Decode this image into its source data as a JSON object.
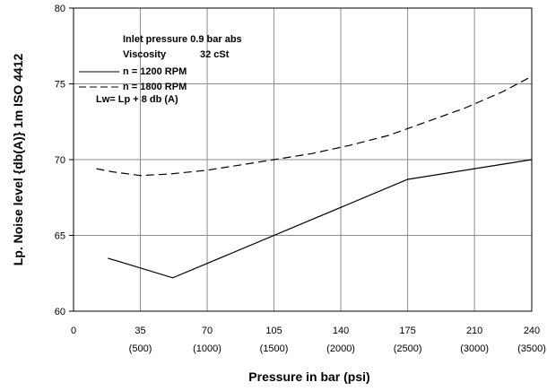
{
  "chart_data": {
    "type": "line",
    "xlabel": "Pressure in bar (psi)",
    "ylabel": "Lp. Noise level {db(A)} 1m ISO 4412",
    "xlim": [
      0,
      240
    ],
    "ylim": [
      60,
      80
    ],
    "x_ticks": [
      {
        "value": 0,
        "bar": "0",
        "psi": ""
      },
      {
        "value": 35,
        "bar": "35",
        "psi": "(500)"
      },
      {
        "value": 70,
        "bar": "70",
        "psi": "(1000)"
      },
      {
        "value": 105,
        "bar": "105",
        "psi": "(1500)"
      },
      {
        "value": 140,
        "bar": "140",
        "psi": "(2000)"
      },
      {
        "value": 175,
        "bar": "175",
        "psi": "(2500)"
      },
      {
        "value": 210,
        "bar": "210",
        "psi": "(3000)"
      },
      {
        "value": 240,
        "bar": "240",
        "psi": "(3500)"
      }
    ],
    "y_ticks": [
      60,
      65,
      70,
      75,
      80
    ],
    "grid": true,
    "annotations": {
      "inlet": "Inlet pressure 0.9 bar abs",
      "viscosity_label": "Viscosity",
      "viscosity_value": "32 cSt",
      "lw": "Lw= Lp + 8 db (A)"
    },
    "legend_position": "top-left",
    "series": [
      {
        "name": "n = 1200 RPM",
        "style": "solid",
        "x": [
          18,
          52,
          175,
          240
        ],
        "y": [
          63.5,
          62.2,
          68.7,
          70.0
        ]
      },
      {
        "name": "n = 1800 RPM",
        "style": "dashed",
        "x": [
          12,
          20,
          35,
          50,
          70,
          90,
          105,
          125,
          145,
          165,
          185,
          205,
          225,
          240
        ],
        "y": [
          69.4,
          69.2,
          68.95,
          69.05,
          69.3,
          69.7,
          70.0,
          70.4,
          70.95,
          71.6,
          72.5,
          73.4,
          74.5,
          75.5
        ]
      }
    ]
  }
}
